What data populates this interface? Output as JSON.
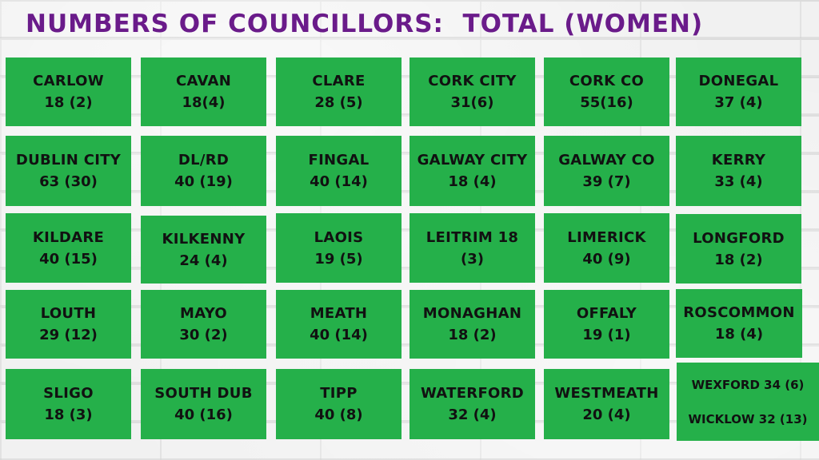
{
  "title": "NUMBERS OF COUNCILLORS:  TOTAL (WOMEN)",
  "colors": {
    "title": "#6a1b8a",
    "box": "#25b04a",
    "text": "#111111"
  },
  "councils": [
    {
      "name": "CARLOW",
      "value": "18 (2)"
    },
    {
      "name": "CAVAN",
      "value": "18(4)"
    },
    {
      "name": "CLARE",
      "value": "28 (5)"
    },
    {
      "name": "CORK CITY",
      "value": "31(6)"
    },
    {
      "name": "CORK CO",
      "value": "55(16)"
    },
    {
      "name": "DONEGAL",
      "value": "37 (4)"
    },
    {
      "name": "DUBLIN CITY",
      "value": "63 (30)"
    },
    {
      "name": "DL/RD",
      "value": "40 (19)"
    },
    {
      "name": "FINGAL",
      "value": "40 (14)"
    },
    {
      "name": "GALWAY CITY",
      "value": "18 (4)"
    },
    {
      "name": "GALWAY CO",
      "value": "39 (7)"
    },
    {
      "name": "KERRY",
      "value": "33 (4)"
    },
    {
      "name": "KILDARE",
      "value": "40 (15)"
    },
    {
      "name": "KILKENNY",
      "value": "24 (4)"
    },
    {
      "name": "LAOIS",
      "value": "19 (5)"
    },
    {
      "name": "LEITRIM 18",
      "value": "(3)"
    },
    {
      "name": "LIMERICK",
      "value": "40 (9)"
    },
    {
      "name": "LONGFORD",
      "value": "18 (2)"
    },
    {
      "name": "LOUTH",
      "value": "29 (12)"
    },
    {
      "name": "MAYO",
      "value": "30 (2)"
    },
    {
      "name": "MEATH",
      "value": "40 (14)"
    },
    {
      "name": "MONAGHAN",
      "value": "18 (2)"
    },
    {
      "name": "OFFALY",
      "value": "19 (1)"
    },
    {
      "name": "ROSCOMMON",
      "value": "18 (4)"
    },
    {
      "name": "SLIGO",
      "value": "18 (3)"
    },
    {
      "name": "SOUTH DUB",
      "value": "40 (16)"
    },
    {
      "name": "TIPP",
      "value": "40 (8)"
    },
    {
      "name": "WATERFORD",
      "value": "32 (4)"
    },
    {
      "name": "WESTMEATH",
      "value": "20 (4)"
    }
  ],
  "combined_box": {
    "line1": "WEXFORD 34 (6)",
    "line2": "WICKLOW 32 (13)"
  }
}
